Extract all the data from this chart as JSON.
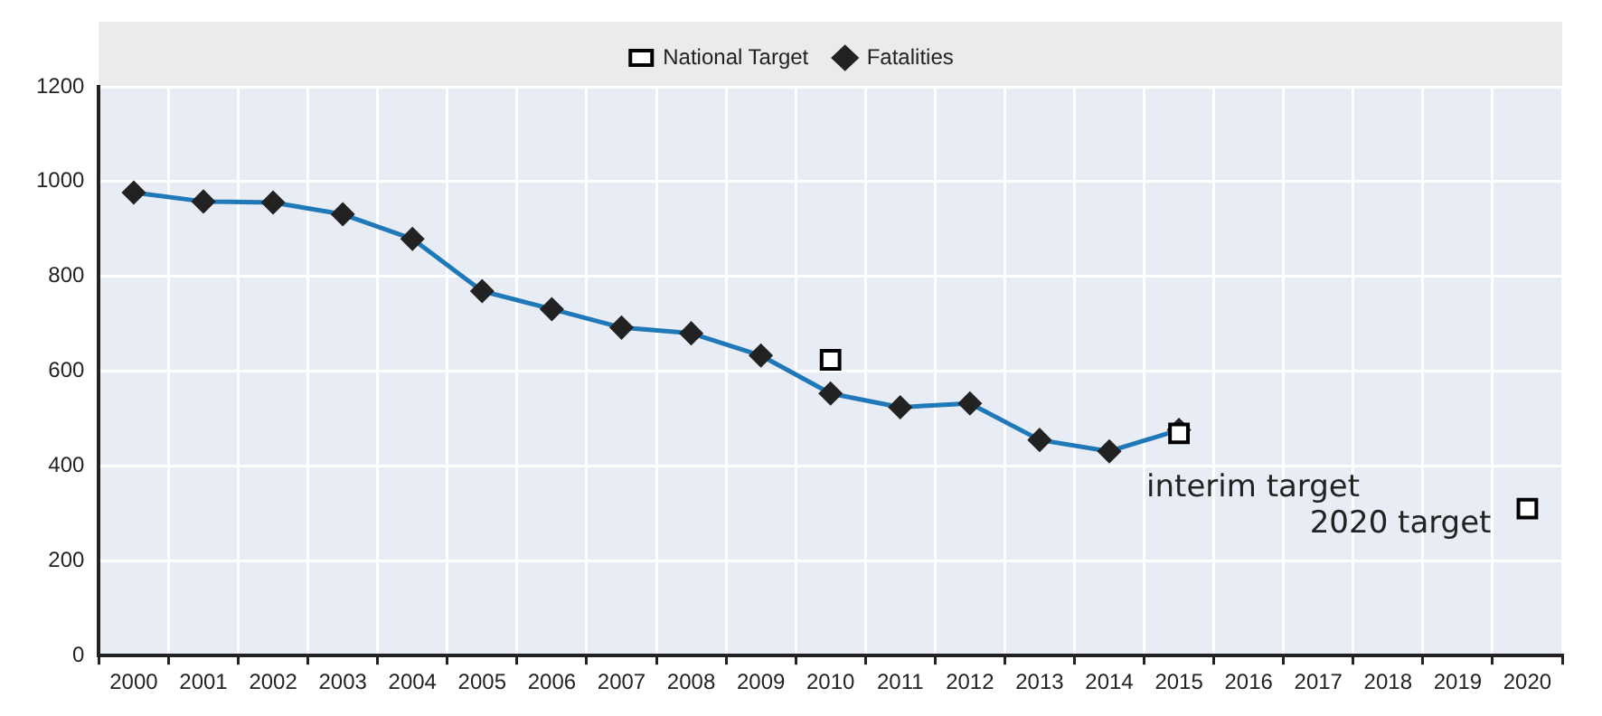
{
  "chart_data": {
    "type": "line",
    "categories": [
      "2000",
      "2001",
      "2002",
      "2003",
      "2004",
      "2005",
      "2006",
      "2007",
      "2008",
      "2009",
      "2010",
      "2011",
      "2012",
      "2013",
      "2014",
      "2015",
      "2016",
      "2017",
      "2018",
      "2019",
      "2020"
    ],
    "series": [
      {
        "name": "Fatalities",
        "color": "#1f78b8",
        "marker": "diamond",
        "values": [
          977,
          958,
          956,
          931,
          879,
          769,
          731,
          692,
          680,
          633,
          553,
          524,
          532,
          455,
          431,
          476,
          null,
          null,
          null,
          null,
          null
        ]
      },
      {
        "name": "National Target",
        "type": "scatter",
        "color": "#000000",
        "marker": "square",
        "values": [
          null,
          null,
          null,
          null,
          null,
          null,
          null,
          null,
          null,
          null,
          624,
          null,
          null,
          null,
          null,
          469,
          null,
          null,
          null,
          null,
          310
        ]
      }
    ],
    "ylim": [
      0,
      1200
    ],
    "yticks": [
      0,
      200,
      400,
      600,
      800,
      1000,
      1200
    ],
    "grid": true,
    "legend": "top",
    "annotations": [
      {
        "text": "interim target",
        "x": "2015",
        "y": 469
      },
      {
        "text": "2020 target",
        "x": "2020",
        "y": 310
      }
    ]
  }
}
